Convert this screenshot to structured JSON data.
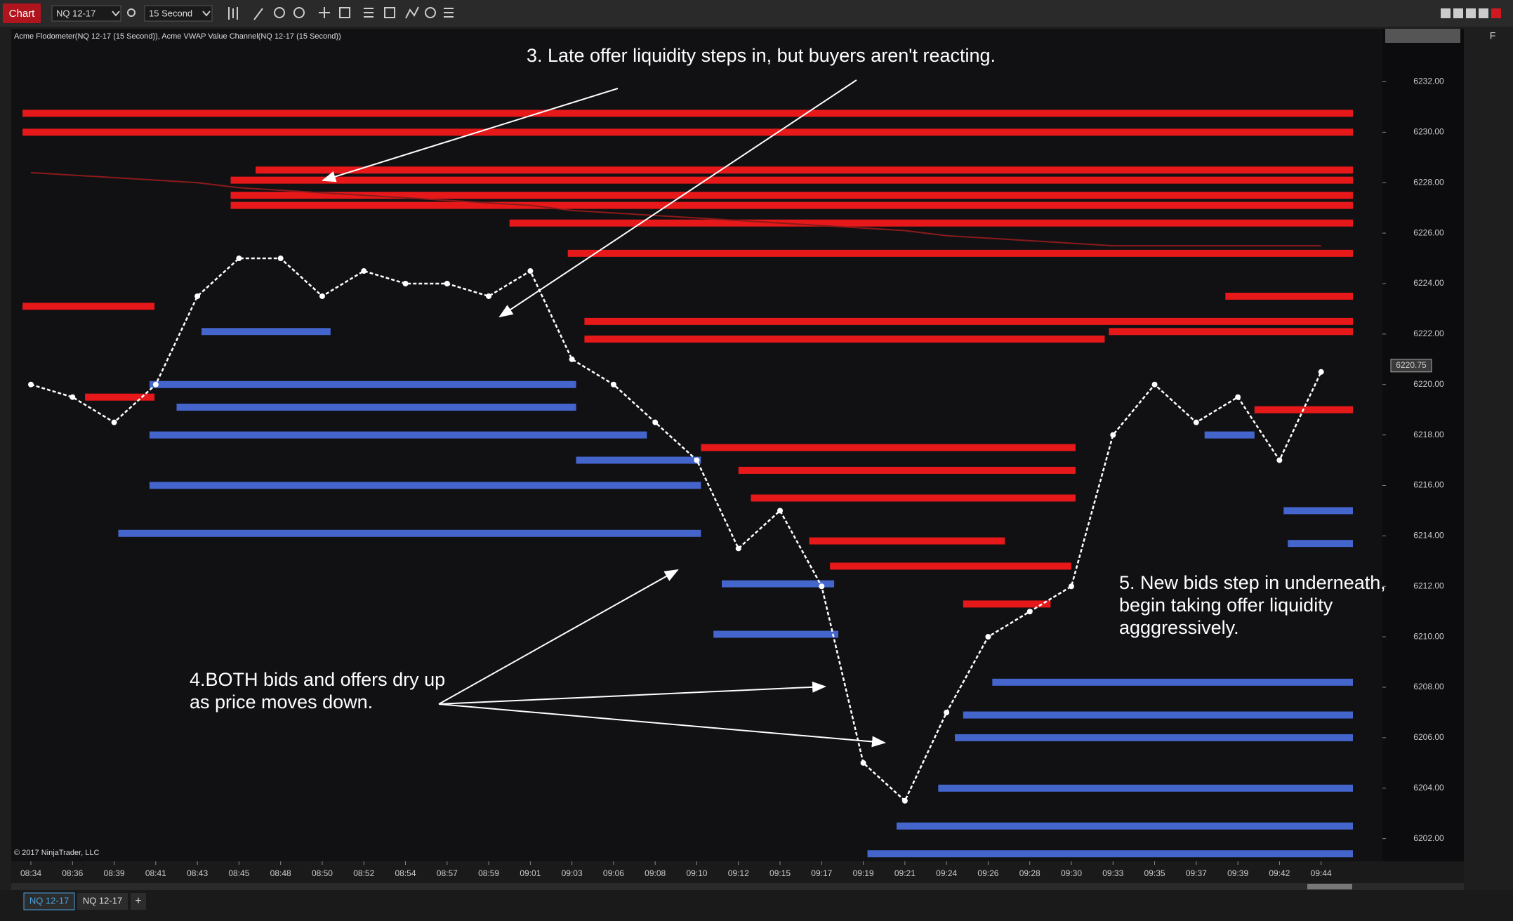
{
  "toolbar": {
    "chart_tab": "Chart",
    "instrument": "NQ 12-17",
    "interval": "15 Second",
    "side_button": "F"
  },
  "tabs": {
    "items": [
      "NQ 12-17",
      "NQ 12-17"
    ],
    "add": "+"
  },
  "chart_data": {
    "type": "heatmap",
    "indicator_label": "Acme Flodometer(NQ 12-17 (15 Second)), Acme VWAP Value Channel(NQ 12-17 (15 Second))",
    "copyright": "© 2017 NinjaTrader, LLC",
    "categories": [
      "08:34",
      "08:36",
      "08:39",
      "08:41",
      "08:43",
      "08:45",
      "08:48",
      "08:50",
      "08:52",
      "08:54",
      "08:57",
      "08:59",
      "09:01",
      "09:03",
      "09:06",
      "09:08",
      "09:10",
      "09:12",
      "09:15",
      "09:17",
      "09:19",
      "09:21",
      "09:24",
      "09:26",
      "09:28",
      "09:30",
      "09:33",
      "09:35",
      "09:37",
      "09:39",
      "09:42",
      "09:44"
    ],
    "price_values": [
      6220,
      6219.5,
      6218.5,
      6220,
      6223.5,
      6225,
      6225,
      6223.5,
      6224.5,
      6224,
      6224,
      6223.5,
      6224.5,
      6221,
      6220,
      6218.5,
      6217,
      6213.5,
      6215,
      6212,
      6205,
      6203.5,
      6207,
      6210,
      6211,
      6212,
      6218,
      6220,
      6218.5,
      6219.5,
      6217,
      6220.5
    ],
    "price_color": "#ffffff",
    "vwap_values": [
      6228.4,
      6228.3,
      6228.2,
      6228.1,
      6228.0,
      6227.8,
      6227.7,
      6227.6,
      6227.5,
      6227.4,
      6227.3,
      6227.2,
      6227.1,
      6226.9,
      6226.8,
      6226.7,
      6226.6,
      6226.5,
      6226.4,
      6226.3,
      6226.2,
      6226.1,
      6225.9,
      6225.8,
      6225.7,
      6225.6,
      6225.5,
      6225.5,
      6225.5,
      6225.5,
      6225.5,
      6225.5
    ],
    "vwap_color": "#8b1a1a",
    "offer_color": "#ff1a1a",
    "bid_color": "#4a6fe0",
    "offer_levels": [
      {
        "price": 6230.75,
        "start": -0.2,
        "end": 31.8
      },
      {
        "price": 6230.0,
        "start": -0.2,
        "end": 31.8
      },
      {
        "price": 6228.5,
        "start": 5.4,
        "end": 31.8
      },
      {
        "price": 6228.1,
        "start": 4.8,
        "end": 31.8
      },
      {
        "price": 6227.5,
        "start": 4.8,
        "end": 31.8
      },
      {
        "price": 6227.1,
        "start": 4.8,
        "end": 31.8
      },
      {
        "price": 6226.4,
        "start": 11.5,
        "end": 31.8
      },
      {
        "price": 6225.2,
        "start": 12.9,
        "end": 31.8
      },
      {
        "price": 6223.5,
        "start": 28.7,
        "end": 31.8
      },
      {
        "price": 6223.1,
        "start": -0.2,
        "end": 2.97
      },
      {
        "price": 6222.5,
        "start": 13.3,
        "end": 31.8
      },
      {
        "price": 6221.8,
        "start": 13.3,
        "end": 25.8
      },
      {
        "price": 6222.1,
        "start": 25.9,
        "end": 31.8
      },
      {
        "price": 6219.5,
        "start": 1.3,
        "end": 2.97
      },
      {
        "price": 6217.5,
        "start": 16.1,
        "end": 25.1
      },
      {
        "price": 6216.6,
        "start": 17.0,
        "end": 25.1
      },
      {
        "price": 6215.5,
        "start": 17.3,
        "end": 25.1
      },
      {
        "price": 6213.8,
        "start": 18.7,
        "end": 23.4
      },
      {
        "price": 6212.8,
        "start": 19.2,
        "end": 25.0
      },
      {
        "price": 6211.3,
        "start": 22.4,
        "end": 24.5
      },
      {
        "price": 6219.0,
        "start": 29.4,
        "end": 31.8
      }
    ],
    "bid_levels": [
      {
        "price": 6220.0,
        "start": 2.85,
        "end": 13.1
      },
      {
        "price": 6219.1,
        "start": 3.5,
        "end": 13.1
      },
      {
        "price": 6218.0,
        "start": 2.85,
        "end": 14.8
      },
      {
        "price": 6217.0,
        "start": 13.1,
        "end": 16.1
      },
      {
        "price": 6216.0,
        "start": 2.85,
        "end": 16.1
      },
      {
        "price": 6214.1,
        "start": 2.1,
        "end": 16.1
      },
      {
        "price": 6212.1,
        "start": 16.6,
        "end": 19.3
      },
      {
        "price": 6210.1,
        "start": 16.4,
        "end": 19.4
      },
      {
        "price": 6208.2,
        "start": 23.1,
        "end": 31.8
      },
      {
        "price": 6206.9,
        "start": 22.4,
        "end": 31.8
      },
      {
        "price": 6206.0,
        "start": 22.2,
        "end": 31.8
      },
      {
        "price": 6204.0,
        "start": 21.8,
        "end": 31.8
      },
      {
        "price": 6202.5,
        "start": 20.8,
        "end": 31.8
      },
      {
        "price": 6201.4,
        "start": 20.1,
        "end": 31.8
      },
      {
        "price": 6222.1,
        "start": 4.1,
        "end": 7.2
      },
      {
        "price": 6215.0,
        "start": 30.1,
        "end": 31.8
      },
      {
        "price": 6213.7,
        "start": 30.2,
        "end": 31.8
      },
      {
        "price": 6218.0,
        "start": 28.2,
        "end": 29.4
      }
    ],
    "ylim": [
      6201.1,
      6234.1
    ],
    "yticks": [
      {
        "value": 6202,
        "label": "6202.00"
      },
      {
        "value": 6204,
        "label": "6204.00"
      },
      {
        "value": 6206,
        "label": "6206.00"
      },
      {
        "value": 6208,
        "label": "6208.00"
      },
      {
        "value": 6210,
        "label": "6210.00"
      },
      {
        "value": 6212,
        "label": "6212.00"
      },
      {
        "value": 6214,
        "label": "6214.00"
      },
      {
        "value": 6216,
        "label": "6216.00"
      },
      {
        "value": 6218,
        "label": "6218.00"
      },
      {
        "value": 6220,
        "label": "6220.00"
      },
      {
        "value": 6222,
        "label": "6222.00"
      },
      {
        "value": 6224,
        "label": "6224.00"
      },
      {
        "value": 6226,
        "label": "6226.00"
      },
      {
        "value": 6228,
        "label": "6228.00"
      },
      {
        "value": 6230,
        "label": "6230.00"
      },
      {
        "value": 6232,
        "label": "6232.00"
      }
    ],
    "last_price": 6220.75,
    "annotations": [
      {
        "lines": [
          "3. Late offer liquidity steps in, but buyers aren't reacting."
        ]
      },
      {
        "lines": [
          "4.BOTH bids and offers dry up",
          "as price moves down."
        ]
      },
      {
        "lines": [
          "5. New bids step in underneath,",
          "begin taking offer liquidity",
          "agggressively."
        ]
      }
    ]
  }
}
